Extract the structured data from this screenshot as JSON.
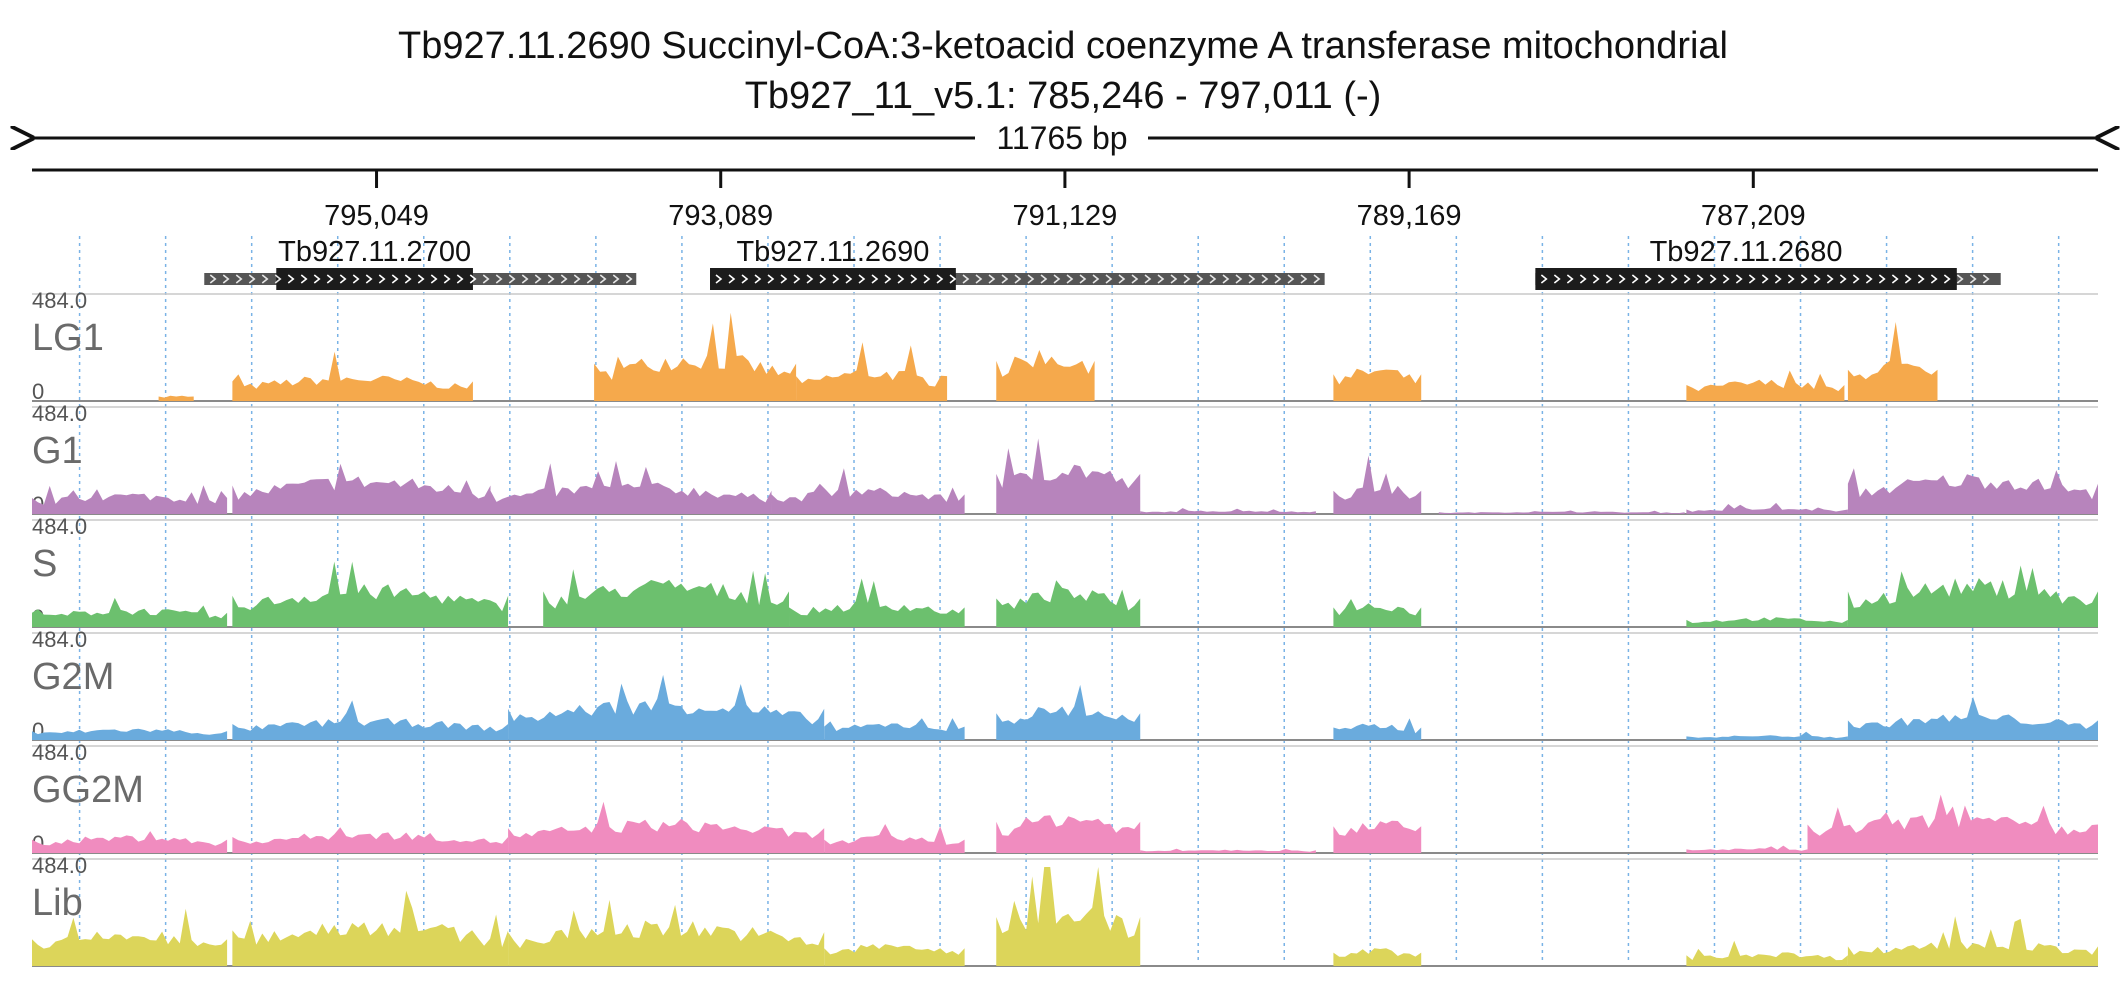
{
  "header": {
    "title": "Tb927.11.2690  Succinyl-CoA:3-ketoacid coenzyme A transferase  mitochondrial",
    "subtitle": "Tb927_11_v5.1: 785,246 - 797,011 (-)"
  },
  "chart_data": {
    "type": "area",
    "region": {
      "chrom": "Tb927_11_v5.1",
      "start": 785246,
      "end": 797011,
      "strand": "-"
    },
    "span_label": "11765 bp",
    "x_axis": {
      "reversed": true,
      "ticks": [
        795049,
        793089,
        791129,
        789169,
        787209
      ],
      "tick_labels": [
        "795,049",
        "793,089",
        "791,129",
        "789,169",
        "787,209"
      ]
    },
    "grid": true,
    "genes": [
      {
        "name": "Tb927.11.2700",
        "start": 793570,
        "end": 796030,
        "cds_start": 794500,
        "cds_end": 795620,
        "direction": "right"
      },
      {
        "name": "Tb927.11.2690",
        "start": 789650,
        "end": 793150,
        "cds_start": 791750,
        "cds_end": 793150,
        "direction": "right"
      },
      {
        "name": "Tb927.11.2680",
        "start": 785800,
        "end": 788450,
        "cds_start": 786050,
        "cds_end": 788450,
        "direction": "right"
      }
    ],
    "tracks": [
      {
        "name": "LG1",
        "max_label": "484.0",
        "min_label": "0",
        "max": 484,
        "color": "#f5a94c",
        "segments": [
          {
            "from": 796290,
            "to": 796090,
            "level": 0.05
          },
          {
            "from": 795870,
            "to": 794500,
            "level": 0.22
          },
          {
            "from": 793810,
            "to": 792660,
            "level": 0.42
          },
          {
            "from": 792660,
            "to": 791800,
            "level": 0.28
          },
          {
            "from": 791520,
            "to": 790960,
            "level": 0.45
          },
          {
            "from": 789600,
            "to": 789100,
            "level": 0.3
          },
          {
            "from": 787590,
            "to": 786690,
            "level": 0.18
          },
          {
            "from": 786670,
            "to": 786160,
            "level": 0.35
          }
        ]
      },
      {
        "name": "G1",
        "max_label": "484.0",
        "min_label": "0",
        "max": 484,
        "color": "#b784bc",
        "segments": [
          {
            "from": 797011,
            "to": 795900,
            "level": 0.18
          },
          {
            "from": 795870,
            "to": 794400,
            "level": 0.32
          },
          {
            "from": 794400,
            "to": 792800,
            "level": 0.26
          },
          {
            "from": 792800,
            "to": 791700,
            "level": 0.22
          },
          {
            "from": 791520,
            "to": 790700,
            "level": 0.45
          },
          {
            "from": 790700,
            "to": 789700,
            "level": 0.03
          },
          {
            "from": 789600,
            "to": 789100,
            "level": 0.26
          },
          {
            "from": 789000,
            "to": 787600,
            "level": 0.02
          },
          {
            "from": 787590,
            "to": 786670,
            "level": 0.05
          },
          {
            "from": 786670,
            "to": 785246,
            "level": 0.34
          }
        ]
      },
      {
        "name": "S",
        "max_label": "484.0",
        "min_label": "0",
        "max": 484,
        "color": "#6cc06e",
        "segments": [
          {
            "from": 797011,
            "to": 795900,
            "level": 0.16
          },
          {
            "from": 795870,
            "to": 794300,
            "level": 0.35
          },
          {
            "from": 794100,
            "to": 792700,
            "level": 0.4
          },
          {
            "from": 792700,
            "to": 791700,
            "level": 0.22
          },
          {
            "from": 791520,
            "to": 790700,
            "level": 0.32
          },
          {
            "from": 789600,
            "to": 789100,
            "level": 0.22
          },
          {
            "from": 787590,
            "to": 786670,
            "level": 0.08
          },
          {
            "from": 786670,
            "to": 785246,
            "level": 0.4
          }
        ]
      },
      {
        "name": "G2M",
        "max_label": "484.0",
        "min_label": "0",
        "max": 484,
        "color": "#6aabdd",
        "segments": [
          {
            "from": 797011,
            "to": 795900,
            "level": 0.1
          },
          {
            "from": 795870,
            "to": 794300,
            "level": 0.18
          },
          {
            "from": 794300,
            "to": 792500,
            "level": 0.35
          },
          {
            "from": 792500,
            "to": 791700,
            "level": 0.15
          },
          {
            "from": 791520,
            "to": 790700,
            "level": 0.3
          },
          {
            "from": 789600,
            "to": 789100,
            "level": 0.14
          },
          {
            "from": 787590,
            "to": 786670,
            "level": 0.04
          },
          {
            "from": 786670,
            "to": 785246,
            "level": 0.22
          }
        ]
      },
      {
        "name": "GG2M",
        "max_label": "484.0",
        "min_label": "0",
        "max": 484,
        "color": "#f08cbf",
        "segments": [
          {
            "from": 797011,
            "to": 795900,
            "level": 0.15
          },
          {
            "from": 795870,
            "to": 794300,
            "level": 0.18
          },
          {
            "from": 794300,
            "to": 792500,
            "level": 0.28
          },
          {
            "from": 792500,
            "to": 791700,
            "level": 0.15
          },
          {
            "from": 791520,
            "to": 790700,
            "level": 0.35
          },
          {
            "from": 790700,
            "to": 789700,
            "level": 0.03
          },
          {
            "from": 789600,
            "to": 789100,
            "level": 0.3
          },
          {
            "from": 787590,
            "to": 786900,
            "level": 0.04
          },
          {
            "from": 786900,
            "to": 785246,
            "level": 0.32
          }
        ]
      },
      {
        "name": "Lib",
        "max_label": "484.0",
        "min_label": "0",
        "max": 484,
        "color": "#dcd55a",
        "segments": [
          {
            "from": 797011,
            "to": 795900,
            "level": 0.3
          },
          {
            "from": 795870,
            "to": 794300,
            "level": 0.4
          },
          {
            "from": 794300,
            "to": 792500,
            "level": 0.38
          },
          {
            "from": 792500,
            "to": 791700,
            "level": 0.2
          },
          {
            "from": 791520,
            "to": 790700,
            "level": 0.55
          },
          {
            "from": 789600,
            "to": 789100,
            "level": 0.15
          },
          {
            "from": 787590,
            "to": 786670,
            "level": 0.12
          },
          {
            "from": 786670,
            "to": 785246,
            "level": 0.22
          }
        ]
      }
    ]
  }
}
